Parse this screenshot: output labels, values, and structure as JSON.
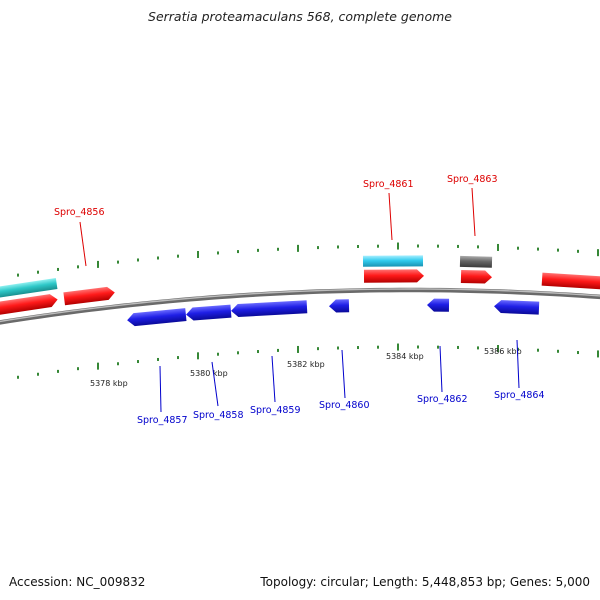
{
  "title": "Serratia proteamaculans 568, complete genome",
  "footer": {
    "accession": "Accession: NC_009832",
    "summary": "Topology: circular; Length: 5,448,853 bp; Genes: 5,000"
  },
  "scale_labels": [
    "5378 kbp",
    "5380 kbp",
    "5382 kbp",
    "5384 kbp",
    "5386 kbp"
  ],
  "colors": {
    "forward_gene": "#ff1a1a",
    "reverse_gene": "#1f1fe6",
    "rna_cyan": "#33ccee",
    "teal_feature": "#2ec8c8",
    "gray_feature": "#666666",
    "backbone": "#888888",
    "tick_green": "#1f7a1f"
  },
  "genes_top": [
    {
      "id": "Spro_4856",
      "color": "#dd0000"
    },
    {
      "id": "Spro_4861",
      "color": "#dd0000"
    },
    {
      "id": "Spro_4863",
      "color": "#dd0000"
    }
  ],
  "genes_bottom": [
    {
      "id": "Spro_4857",
      "color": "#0000cc"
    },
    {
      "id": "Spro_4858",
      "color": "#0000cc"
    },
    {
      "id": "Spro_4859",
      "color": "#0000cc"
    },
    {
      "id": "Spro_4860",
      "color": "#0000cc"
    },
    {
      "id": "Spro_4862",
      "color": "#0000cc"
    },
    {
      "id": "Spro_4864",
      "color": "#0000cc"
    }
  ]
}
